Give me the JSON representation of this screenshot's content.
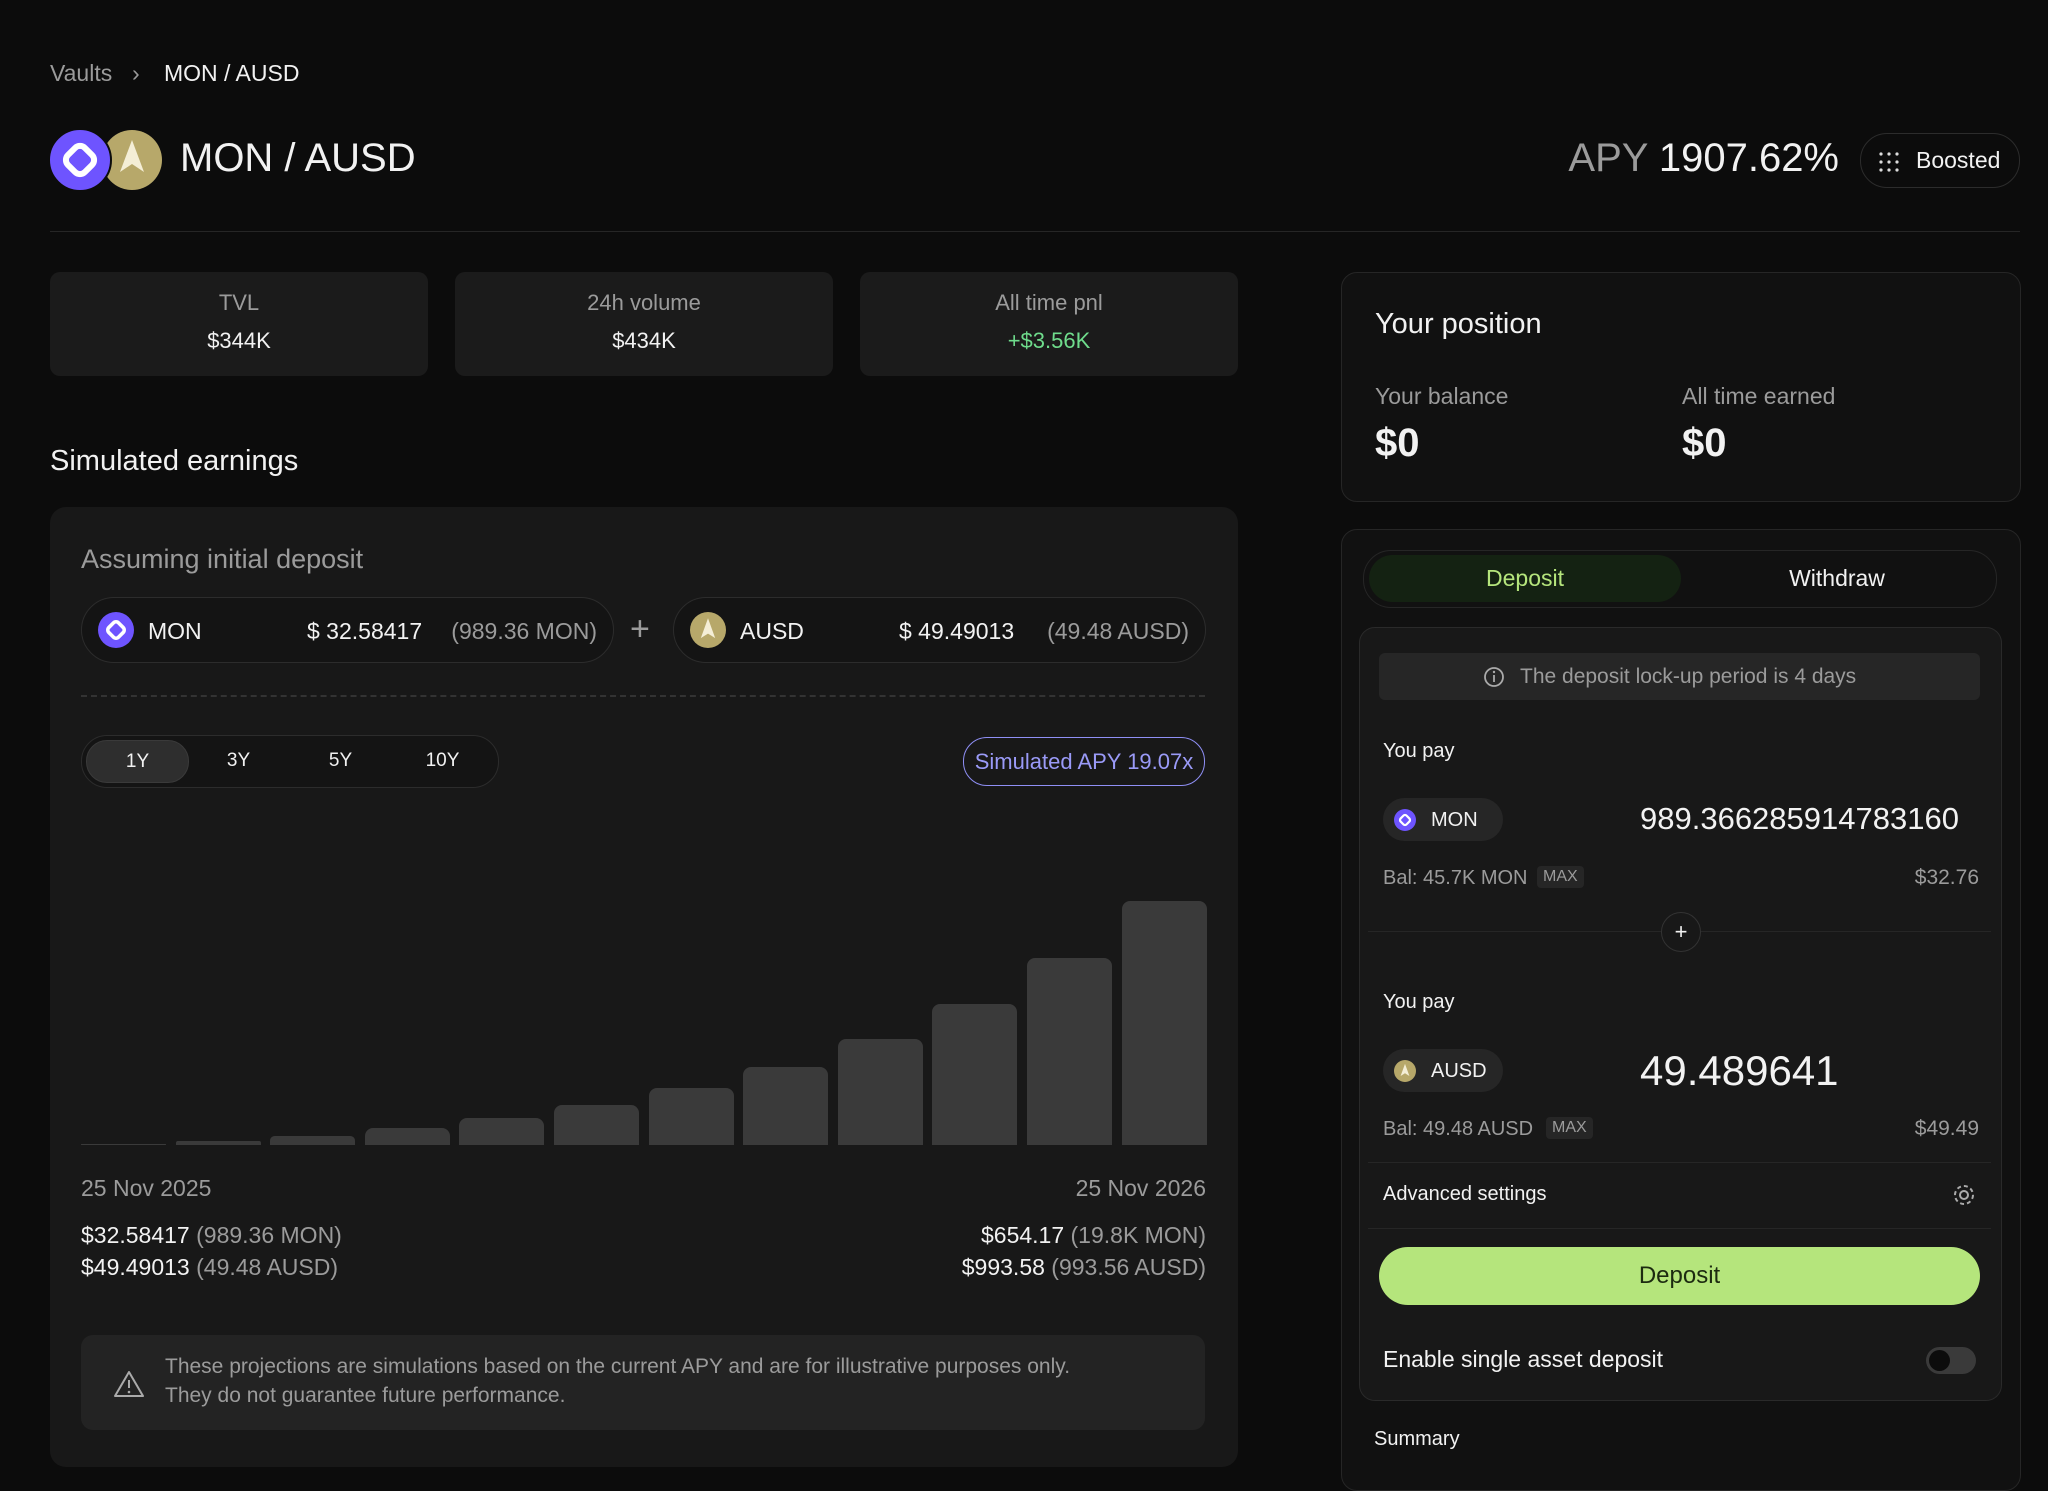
{
  "breadcrumb": {
    "items": [
      "Vaults",
      "MON / AUSD"
    ],
    "separator": "›"
  },
  "header": {
    "title": "MON / AUSD",
    "apy_label": "APY",
    "apy_value": "1907.62%",
    "badge": "Boosted"
  },
  "stats": [
    {
      "label": "TVL",
      "value": "$344K"
    },
    {
      "label": "24h volume",
      "value": "$434K"
    },
    {
      "label": "All time pnl",
      "value": "+$3.56K"
    }
  ],
  "simulated": {
    "title": "Simulated earnings",
    "subtitle": "Assuming initial deposit",
    "inputs": [
      {
        "token": "MON",
        "usd": "$ 32.58417",
        "amount": "(989.36 MON)"
      },
      {
        "token": "AUSD",
        "usd": "$ 49.49013",
        "amount": "(49.48 AUSD)"
      }
    ],
    "plus": "+",
    "periods": [
      "1Y",
      "3Y",
      "5Y",
      "10Y"
    ],
    "simulated_apy": "Simulated APY 19.07x",
    "chart": {
      "type": "bar",
      "values": [
        8,
        25,
        59,
        109,
        176,
        259,
        368,
        502,
        678,
        904,
        1197,
        1565
      ],
      "color": "#3a3a3a"
    },
    "start_date": "25 Nov 2025",
    "end_date": "25 Nov 2026",
    "start": [
      {
        "usd": "$32.58417",
        "amount": "(989.36 MON)"
      },
      {
        "usd": "$49.49013",
        "amount": "(49.48 AUSD)"
      }
    ],
    "end": [
      {
        "usd": "$654.17",
        "amount": "(19.8K MON)"
      },
      {
        "usd": "$993.58",
        "amount": "(993.56 AUSD)"
      }
    ],
    "disclaimer": [
      "These projections are simulations based on the current APY and are for illustrative purposes only.",
      "They do not guarantee future performance."
    ]
  },
  "position": {
    "title": "Your position",
    "balance_label": "Your balance",
    "balance": "$0",
    "earned_label": "All time earned",
    "earned": "$0"
  },
  "form": {
    "tabs": [
      "Deposit",
      "Withdraw"
    ],
    "note": "The deposit lock-up period is 4 days",
    "pays": [
      {
        "label": "You pay",
        "token": "MON",
        "amount": "989.366285914783160",
        "balance": "Bal: 45.7K MON",
        "max": "MAX",
        "usd": "$32.76"
      },
      {
        "label": "You pay",
        "token": "AUSD",
        "amount": "49.489641",
        "balance": "Bal: 49.48 AUSD",
        "max": "MAX",
        "usd": "$49.49"
      }
    ],
    "plus": "+",
    "advanced": "Advanced settings",
    "button": "Deposit",
    "single": "Enable single asset deposit",
    "summary": "Summary"
  }
}
